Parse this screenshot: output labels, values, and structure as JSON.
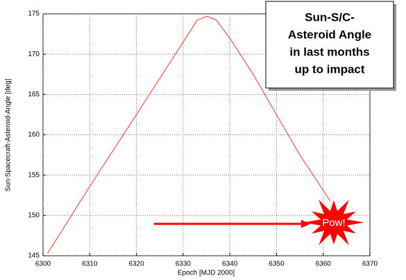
{
  "chart_data": {
    "type": "line",
    "xlabel": "Epoch [MJD 2000]",
    "ylabel": "Sun-Spacecraft-Asteroid-Angle [deg]",
    "x": [
      6301,
      6310,
      6320,
      6325,
      6330,
      6333,
      6335,
      6337,
      6340,
      6345,
      6350,
      6355,
      6361.5
    ],
    "series": [
      {
        "color": "#ff3030",
        "values": [
          145.3,
          153.6,
          162.5,
          167,
          171.5,
          174.2,
          174.7,
          174.3,
          172,
          167.5,
          162.5,
          157.5,
          151.8
        ]
      }
    ],
    "xlim": [
      6300,
      6370
    ],
    "xticks": [
      6300,
      6310,
      6320,
      6330,
      6340,
      6350,
      6360,
      6370
    ],
    "ylim": [
      145,
      175
    ],
    "yticks": [
      145,
      150,
      155,
      160,
      165,
      170,
      175
    ],
    "grid": true,
    "annotations": {
      "box_text": [
        "Sun-S/C-",
        "Asteroid Angle",
        "in last months",
        "up to impact"
      ],
      "burst_text": "Pow!"
    }
  }
}
